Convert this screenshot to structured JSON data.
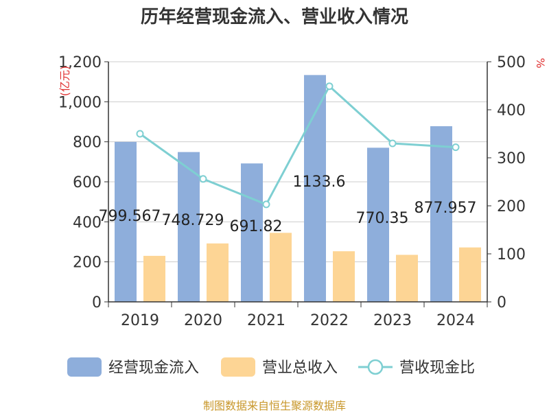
{
  "chart_data": {
    "type": "bar",
    "title": "历年经营现金流入、营业收入情况",
    "categories": [
      "2019",
      "2020",
      "2021",
      "2022",
      "2023",
      "2024"
    ],
    "series": [
      {
        "name": "经营现金流入",
        "kind": "bar",
        "axis": "left",
        "color": "#8eaedb",
        "values": [
          799.567,
          748.729,
          691.82,
          1133.6,
          770.35,
          877.957
        ]
      },
      {
        "name": "营业总收入",
        "kind": "bar",
        "axis": "left",
        "color": "#fdd595",
        "values": [
          230,
          292,
          345,
          253,
          235,
          272
        ]
      },
      {
        "name": "营收现金比",
        "kind": "line",
        "axis": "right",
        "color": "#7ecfd2",
        "values": [
          350,
          256,
          203,
          449,
          330,
          322
        ]
      }
    ],
    "data_labels": [
      "799.567",
      "748.729",
      "691.82",
      "1133.6",
      "770.35",
      "877.957"
    ],
    "left_axis": {
      "label": "(亿元)",
      "ylim": [
        0,
        1200
      ],
      "ticks": [
        0,
        200,
        400,
        600,
        800,
        1000,
        1200
      ],
      "tick_labels": [
        "0",
        "200",
        "400",
        "600",
        "800",
        "1,000",
        "1,200"
      ]
    },
    "right_axis": {
      "label": "%",
      "ylim": [
        0,
        500
      ],
      "ticks": [
        0,
        100,
        200,
        300,
        400,
        500
      ],
      "tick_labels": [
        "0",
        "100",
        "200",
        "300",
        "400",
        "500"
      ]
    },
    "grid": true,
    "legend_position": "bottom"
  },
  "source": "制图数据来自恒生聚源数据库"
}
